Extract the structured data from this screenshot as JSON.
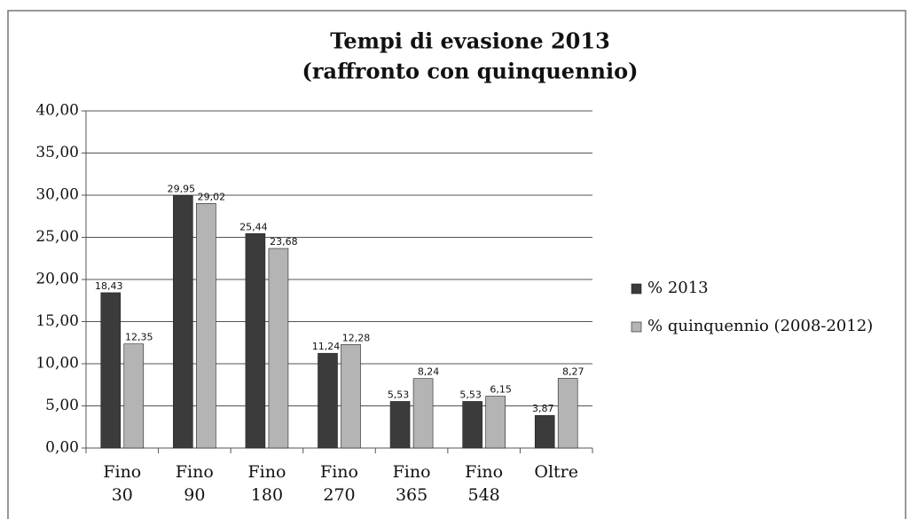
{
  "chart_data": {
    "type": "bar",
    "title": "Tempi di evasione 2013",
    "subtitle": "(raffronto con quinquennio)",
    "categories": [
      "Fino 30",
      "Fino 90",
      "Fino 180",
      "Fino 270",
      "Fino 365",
      "Fino 548",
      "Oltre"
    ],
    "series": [
      {
        "name": "% 2013",
        "color": "#3b3b3b",
        "values": [
          18.43,
          29.95,
          25.44,
          11.24,
          5.53,
          5.53,
          3.87
        ],
        "value_labels": [
          "18,43",
          "29,95",
          "25,44",
          "11,24",
          "5,53",
          "5,53",
          "3,87"
        ]
      },
      {
        "name": "% quinquennio (2008-2012)",
        "color": "#b4b4b4",
        "values": [
          12.35,
          29.02,
          23.68,
          12.28,
          8.24,
          6.15,
          8.27
        ],
        "value_labels": [
          "12,35",
          "29,02",
          "23,68",
          "12,28",
          "8,24",
          "6,15",
          "8,27"
        ]
      }
    ],
    "ylim": [
      0,
      40
    ],
    "yticks": [
      {
        "value": 0,
        "label": "0,00"
      },
      {
        "value": 5,
        "label": "5,00"
      },
      {
        "value": 10,
        "label": "10,00"
      },
      {
        "value": 15,
        "label": "15,00"
      },
      {
        "value": 20,
        "label": "20,00"
      },
      {
        "value": 25,
        "label": "25,00"
      },
      {
        "value": 30,
        "label": "30,00"
      },
      {
        "value": 35,
        "label": "35,00"
      },
      {
        "value": 40,
        "label": "40,00"
      }
    ],
    "grid": true,
    "legend": "right"
  }
}
